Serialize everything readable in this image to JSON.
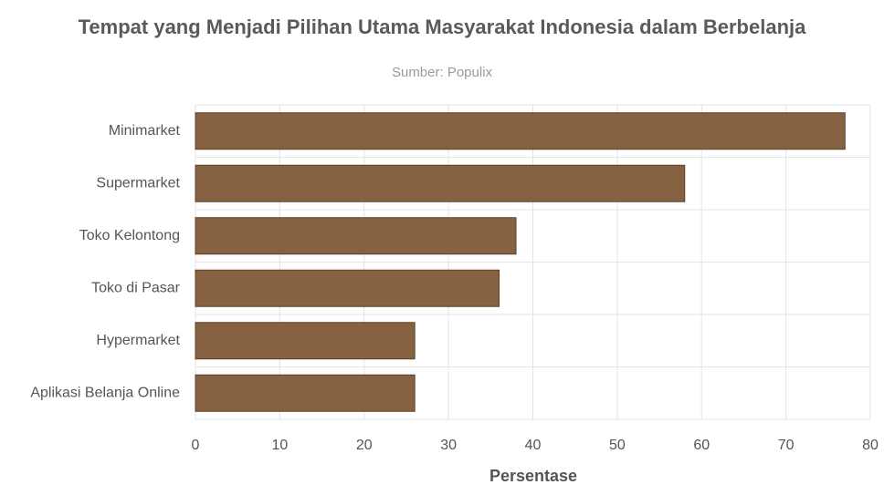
{
  "chart_data": {
    "type": "bar",
    "title": "Tempat yang Menjadi Pilihan Utama Masyarakat Indonesia dalam Berbelanja",
    "subtitle": "Sumber: Populix",
    "x_label": "Persentase",
    "categories": [
      "Minimarket",
      "Supermarket",
      "Toko Kelontong",
      "Toko di Pasar",
      "Hypermarket",
      "Aplikasi Belanja Online"
    ],
    "values": [
      77,
      58,
      38,
      36,
      26,
      26
    ],
    "color": "#7f5a38",
    "xlim": [
      0,
      80
    ],
    "xticks": [
      0,
      10,
      20,
      30,
      40,
      50,
      60,
      70,
      80
    ],
    "grid": true
  }
}
